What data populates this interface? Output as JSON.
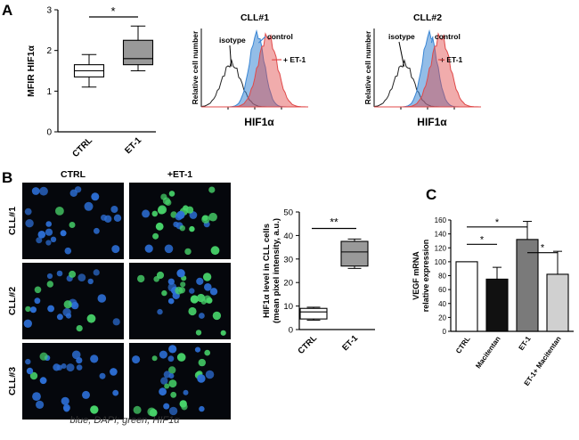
{
  "panels": {
    "A": "A",
    "B": "B",
    "C": "C"
  },
  "micrograph": {
    "columns": [
      "CTRL",
      "+ET-1"
    ],
    "rows": [
      "CLL#1",
      "CLL#2",
      "CLL#3"
    ],
    "caption": "blue, DAPI; green, HIF1α",
    "colors": {
      "background": "#05070c",
      "dapi": "#2d6fd6",
      "hif": "#47d36a"
    }
  },
  "chart_data": [
    {
      "id": "A-box",
      "type": "box",
      "categories": [
        "CTRL",
        "ET-1"
      ],
      "boxes": [
        {
          "min": 1.1,
          "q1": 1.35,
          "median": 1.5,
          "q3": 1.65,
          "max": 1.9
        },
        {
          "min": 1.5,
          "q1": 1.65,
          "median": 1.8,
          "q3": 2.25,
          "max": 2.6
        }
      ],
      "ylabel": "MFIR HIF1α",
      "ylim": [
        0,
        3
      ],
      "yticks": [
        0,
        1,
        2,
        3
      ],
      "significance": "*",
      "colors": [
        "#ffffff",
        "#999999"
      ]
    },
    {
      "id": "A-hist1",
      "type": "area",
      "title": "CLL#1",
      "xlabel": "HIF1α",
      "ylabel": "Relative cell number",
      "series": [
        {
          "name": "isotype",
          "color": "#222222"
        },
        {
          "name": "control",
          "color": "#3a86d4"
        },
        {
          "name": "+ ET-1",
          "color": "#e04848"
        }
      ]
    },
    {
      "id": "A-hist2",
      "type": "area",
      "title": "CLL#2",
      "xlabel": "HIF1α",
      "ylabel": "Relative cell number",
      "series": [
        {
          "name": "isotype",
          "color": "#222222"
        },
        {
          "name": "control",
          "color": "#3a86d4"
        },
        {
          "name": "+ ET-1",
          "color": "#e04848"
        }
      ]
    },
    {
      "id": "B-box",
      "type": "box",
      "categories": [
        "CTRL",
        "ET-1"
      ],
      "boxes": [
        {
          "min": 4,
          "q1": 4.5,
          "median": 7.5,
          "q3": 9,
          "max": 9.5
        },
        {
          "min": 26,
          "q1": 27,
          "median": 33,
          "q3": 37.5,
          "max": 38.5
        }
      ],
      "ylabel": "HIF1α level in CLL cells (mean pixel intensity, a.u.)",
      "ylabel_lines": [
        "HIF1α level in CLL cells",
        "(mean pixel intensity, a.u.)"
      ],
      "ylim": [
        0,
        50
      ],
      "yticks": [
        0,
        10,
        20,
        30,
        40,
        50
      ],
      "significance": "**",
      "colors": [
        "#ffffff",
        "#999999"
      ]
    },
    {
      "id": "C-bar",
      "type": "bar",
      "categories": [
        "CTRL",
        "Macitentan",
        "ET-1",
        "ET-1+ Macitentan"
      ],
      "values": [
        100,
        75,
        132,
        82
      ],
      "errors": [
        0,
        17,
        26,
        33
      ],
      "ylabel": "VEGF mRNA relative expression",
      "ylabel_lines": [
        "VEGF mRNA",
        "relative expression"
      ],
      "ylim": [
        0,
        160
      ],
      "yticks": [
        0,
        20,
        40,
        60,
        80,
        100,
        120,
        140,
        160
      ],
      "colors": [
        "#ffffff",
        "#111111",
        "#7a7a7a",
        "#d0d0d0"
      ],
      "significance": [
        "*",
        "*",
        "*"
      ]
    }
  ]
}
